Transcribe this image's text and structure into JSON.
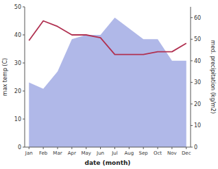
{
  "chart_data": {
    "type": "line",
    "categories": [
      "Jan",
      "Feb",
      "Mar",
      "Apr",
      "May",
      "Jun",
      "Jul",
      "Aug",
      "Sep",
      "Oct",
      "Nov",
      "Dec"
    ],
    "series": [
      {
        "type": "line",
        "color": "#b03050",
        "values": [
          38,
          45,
          43,
          40,
          40,
          39,
          33,
          33,
          33,
          34,
          34,
          37
        ]
      },
      {
        "type": "area",
        "color": "#b0b8e8",
        "axis": "y2",
        "values": [
          30,
          27,
          35,
          50,
          52,
          52,
          60,
          55,
          50,
          50,
          40,
          40
        ]
      }
    ],
    "xlabel": "date (month)",
    "ylabel": "max temp (C)",
    "y2label": "med. precipitation (kg/m2)",
    "ylim": [
      0,
      50
    ],
    "yticks": [
      0,
      10,
      20,
      30,
      40,
      50
    ],
    "y2lim": [
      0,
      65
    ],
    "y2ticks": [
      0,
      10,
      20,
      30,
      40,
      50,
      60
    ],
    "grid": false
  }
}
